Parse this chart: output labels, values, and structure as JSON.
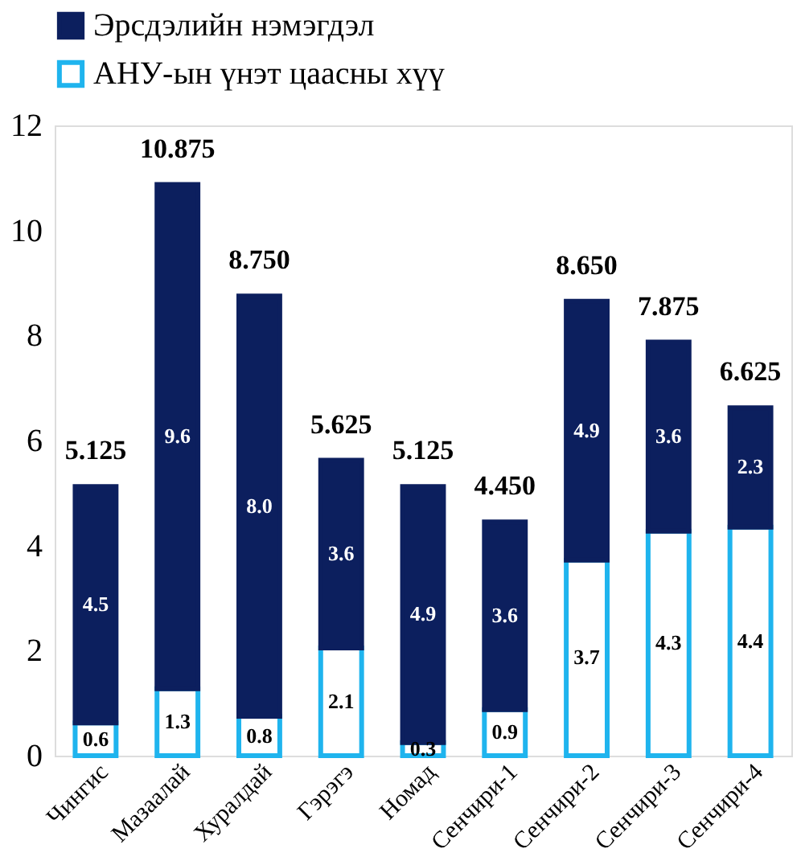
{
  "chart_data": {
    "type": "bar",
    "stacked": true,
    "categories": [
      "Чингис",
      "Мазаалай",
      "Хуралдай",
      "Гэрэгэ",
      "Номад",
      "Сенчири-1",
      "Сенчири-2",
      "Сенчири-3",
      "Сенчири-4"
    ],
    "series": [
      {
        "name": "АНУ-ын үнэт цаасны хүү",
        "color": "#1fb4ee",
        "values": [
          0.625,
          1.275,
          0.75,
          2.05,
          0.25,
          0.875,
          3.725,
          4.275,
          4.35
        ],
        "value_labels": [
          "0.6",
          "1.3",
          "0.8",
          "2.1",
          "0.3",
          "0.9",
          "3.7",
          "4.3",
          "4.4"
        ]
      },
      {
        "name": "Эрсдэлийн нэмэгдэл",
        "color": "#0c1f5e",
        "values": [
          4.5,
          9.6,
          8.0,
          3.575,
          4.875,
          3.575,
          4.925,
          3.6,
          2.275
        ],
        "value_labels": [
          "4.5",
          "9.6",
          "8.0",
          "3.6",
          "4.9",
          "3.6",
          "4.9",
          "3.6",
          "2.3"
        ]
      }
    ],
    "totals": [
      "5.125",
      "10.875",
      "8.750",
      "5.625",
      "5.125",
      "4.450",
      "8.650",
      "7.875",
      "6.625"
    ],
    "ylim": [
      0,
      12
    ],
    "yticks": [
      0,
      2,
      4,
      6,
      8,
      10,
      12
    ],
    "grid": false,
    "legend": "top"
  }
}
